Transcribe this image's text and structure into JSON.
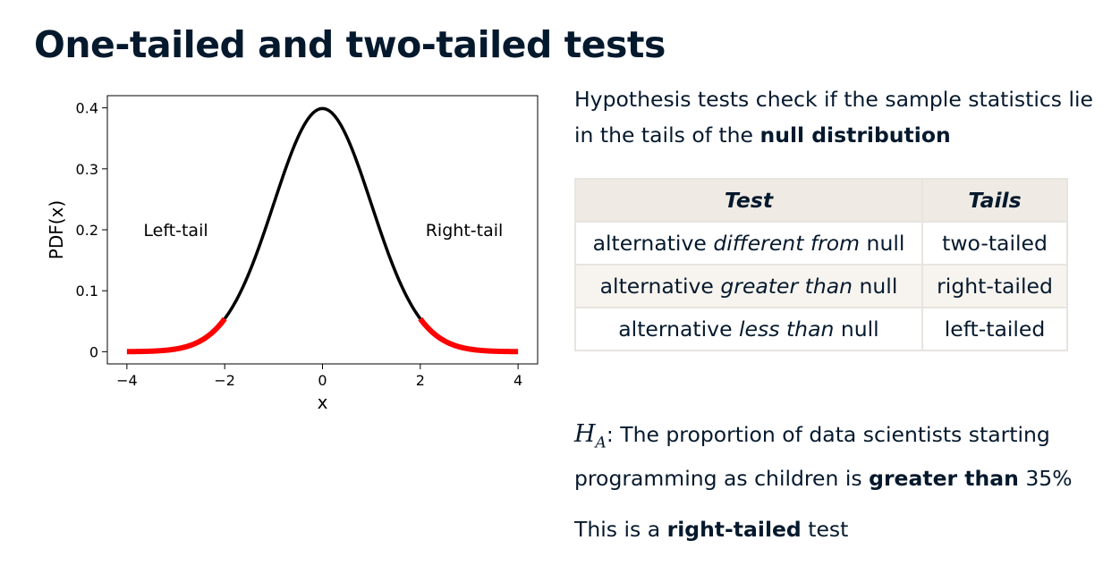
{
  "title": "One-tailed and two-tailed tests",
  "intro": {
    "text_before": "Hypothesis tests check if the sample statistics lie in the tails of the ",
    "bold": "null distribution"
  },
  "table": {
    "headers": [
      "Test",
      "Tails"
    ],
    "rows": [
      {
        "prefix": "alternative ",
        "em": "different from",
        "suffix": " null",
        "tails": "two-tailed"
      },
      {
        "prefix": "alternative ",
        "em": "greater than",
        "suffix": " null",
        "tails": "right-tailed"
      },
      {
        "prefix": "alternative ",
        "em": "less than",
        "suffix": " null",
        "tails": "left-tailed"
      }
    ]
  },
  "hypothesis": {
    "symbol": "H",
    "subscript": "A",
    "text_before": ": The proportion of data scientists starting programming as children is ",
    "bold": "greater than",
    "text_after": " 35%"
  },
  "conclusion": {
    "text_before": "This is a ",
    "bold": "right-tailed",
    "text_after": " test"
  },
  "chart_data": {
    "type": "line",
    "title": "",
    "xlabel": "x",
    "ylabel": "PDF(x)",
    "xlim": [
      -4.4,
      4.4
    ],
    "ylim": [
      -0.02,
      0.42
    ],
    "xticks": [
      -4,
      -2,
      0,
      2,
      4
    ],
    "xtick_labels": [
      "−4",
      "−2",
      "0",
      "2",
      "4"
    ],
    "yticks": [
      0,
      0.1,
      0.2,
      0.3,
      0.4
    ],
    "ytick_labels": [
      "0",
      "0.1",
      "0.2",
      "0.3",
      "0.4"
    ],
    "grid": false,
    "series": [
      {
        "function": "standard normal pdf",
        "x_range": [
          -2,
          2
        ],
        "color": "#000000"
      },
      {
        "function": "standard normal pdf",
        "x_range": [
          -4,
          -2
        ],
        "color": "#ff0000"
      },
      {
        "function": "standard normal pdf",
        "x_range": [
          2,
          4
        ],
        "color": "#ff0000"
      }
    ],
    "annotations": [
      {
        "text": "Left-tail",
        "x": -3,
        "y": 0.2
      },
      {
        "text": "Right-tail",
        "x": 2.9,
        "y": 0.2
      }
    ]
  }
}
